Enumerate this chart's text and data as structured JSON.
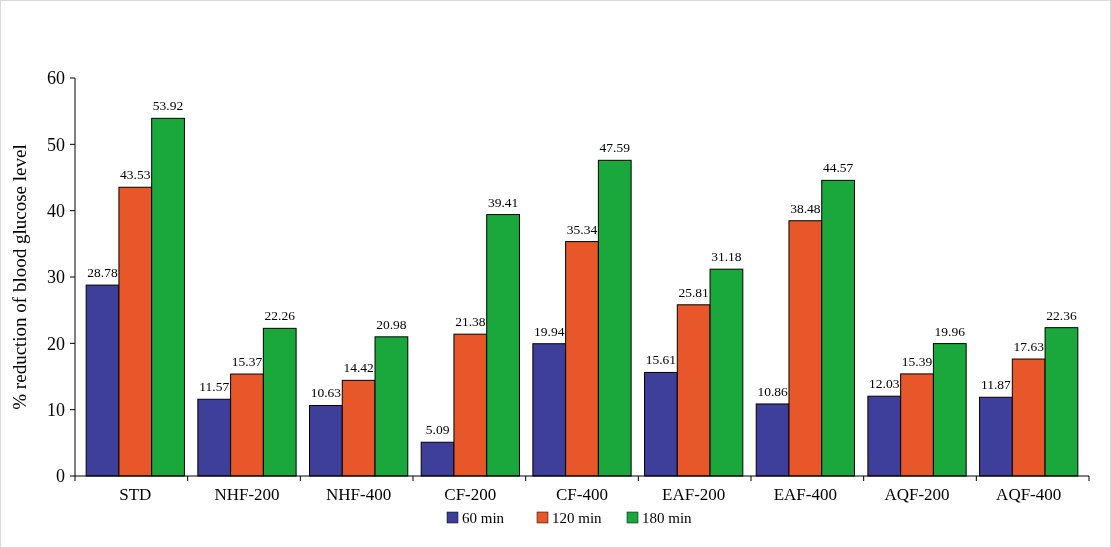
{
  "chart_data": {
    "type": "bar",
    "ylabel": "% reduction of blood glucose level",
    "categories": [
      "STD",
      "NHF-200",
      "NHF-400",
      "CF-200",
      "CF-400",
      "EAF-200",
      "EAF-400",
      "AQF-200",
      "AQF-400"
    ],
    "series": [
      {
        "name": "60 min",
        "color": "#3d3f9b",
        "values": [
          28.78,
          11.57,
          10.63,
          5.09,
          19.94,
          15.61,
          10.86,
          12.03,
          11.87
        ]
      },
      {
        "name": "120 min",
        "color": "#e8572a",
        "values": [
          43.53,
          15.37,
          14.42,
          21.38,
          35.34,
          25.81,
          38.48,
          15.39,
          17.63
        ]
      },
      {
        "name": "180 min",
        "color": "#1aa83c",
        "values": [
          53.92,
          22.26,
          20.98,
          39.41,
          47.59,
          31.18,
          44.57,
          19.96,
          22.36
        ]
      }
    ],
    "ylim": [
      0,
      60
    ],
    "yticks": [
      0,
      10,
      20,
      30,
      40,
      50,
      60
    ],
    "grid": false,
    "legend": "bottom",
    "data_labels": true
  }
}
